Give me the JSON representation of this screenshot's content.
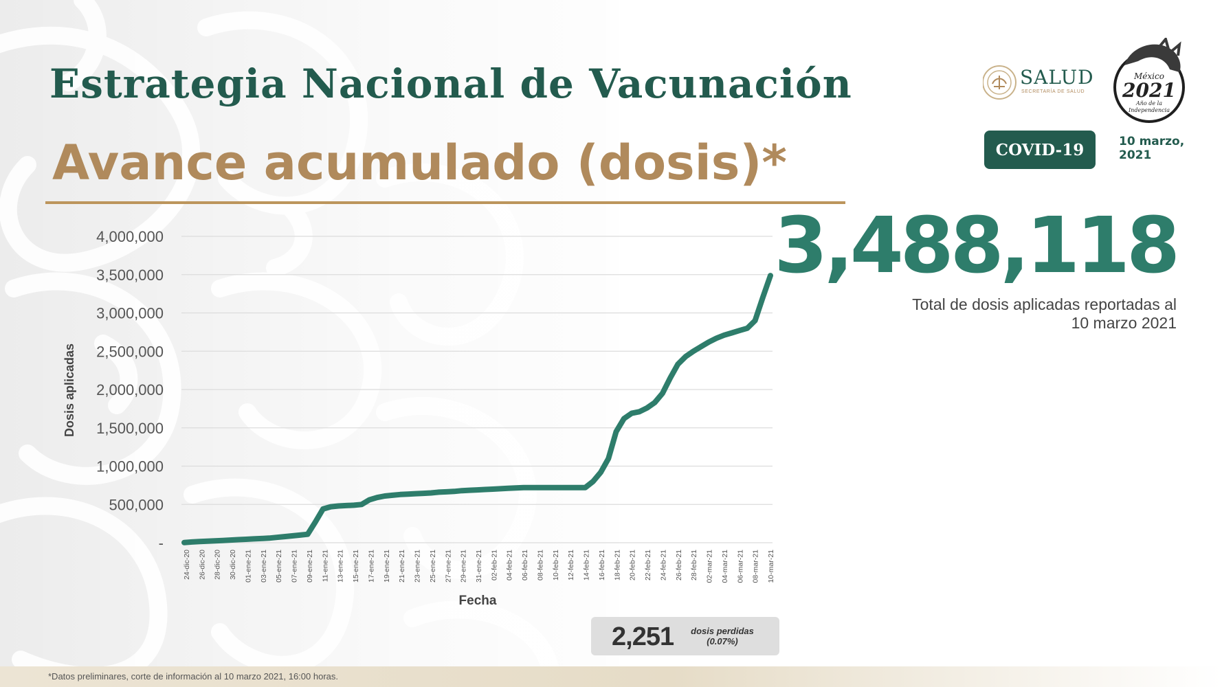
{
  "header": {
    "title": "Estrategia Nacional de Vacunación",
    "subtitle": "Avance acumulado (dosis)*"
  },
  "logos": {
    "salud": "SALUD",
    "salud_sub": "SECRETARÍA DE SALUD",
    "year_badge": "México 2021 Año de la Independencia"
  },
  "badge": {
    "label": "COVID-19"
  },
  "report_date": {
    "line1": "10 marzo,",
    "line2": "2021"
  },
  "summary": {
    "total": "3,488,118",
    "caption_line1": "Total de dosis aplicadas reportadas al",
    "caption_line2": "10 marzo 2021"
  },
  "lost": {
    "number": "2,251",
    "label_line1": "dosis perdidas",
    "label_line2": "(0.07%)"
  },
  "footer": {
    "note": "*Datos preliminares, corte de información al 10 marzo 2021, 16:00 horas."
  },
  "colors": {
    "green": "#235b4e",
    "line": "#2e7d6b",
    "gold": "#b08a5c",
    "grid": "#dcdcdc"
  },
  "chart_data": {
    "type": "line",
    "title": "",
    "xlabel": "Fecha",
    "ylabel": "Dosis aplicadas",
    "ylim": [
      0,
      4000000
    ],
    "y_ticks": [
      0,
      500000,
      1000000,
      1500000,
      2000000,
      2500000,
      3000000,
      3500000,
      4000000
    ],
    "y_tick_labels": [
      "-",
      "500,000",
      "1,000,000",
      "1,500,000",
      "2,000,000",
      "2,500,000",
      "3,000,000",
      "3,500,000",
      "4,000,000"
    ],
    "grid": true,
    "x_tick_labels": [
      "24-dic-20",
      "26-dic-20",
      "28-dic-20",
      "30-dic-20",
      "01-ene-21",
      "03-ene-21",
      "05-ene-21",
      "07-ene-21",
      "09-ene-21",
      "11-ene-21",
      "13-ene-21",
      "15-ene-21",
      "17-ene-21",
      "19-ene-21",
      "21-ene-21",
      "23-ene-21",
      "25-ene-21",
      "27-ene-21",
      "29-ene-21",
      "31-ene-21",
      "02-feb-21",
      "04-feb-21",
      "06-feb-21",
      "08-feb-21",
      "10-feb-21",
      "12-feb-21",
      "14-feb-21",
      "16-feb-21",
      "18-feb-21",
      "20-feb-21",
      "22-feb-21",
      "24-feb-21",
      "26-feb-21",
      "28-feb-21",
      "02-mar-21",
      "04-mar-21",
      "06-mar-21",
      "08-mar-21",
      "10-mar-21"
    ],
    "series": [
      {
        "values": [
          2924,
          10000,
          15000,
          20000,
          25000,
          30000,
          35000,
          40000,
          45000,
          50000,
          55000,
          60000,
          70000,
          80000,
          90000,
          100000,
          110000,
          270000,
          440000,
          470000,
          480000,
          485000,
          490000,
          500000,
          560000,
          590000,
          610000,
          620000,
          630000,
          635000,
          640000,
          645000,
          650000,
          660000,
          665000,
          670000,
          680000,
          685000,
          690000,
          695000,
          700000,
          705000,
          710000,
          715000,
          720000,
          720000,
          720000,
          720000,
          720000,
          720000,
          720000,
          720000,
          720000,
          800000,
          920000,
          1100000,
          1450000,
          1620000,
          1690000,
          1710000,
          1760000,
          1830000,
          1950000,
          2150000,
          2330000,
          2430000,
          2500000,
          2560000,
          2620000,
          2670000,
          2710000,
          2740000,
          2770000,
          2800000,
          2900000,
          3200000,
          3488118
        ]
      }
    ]
  }
}
